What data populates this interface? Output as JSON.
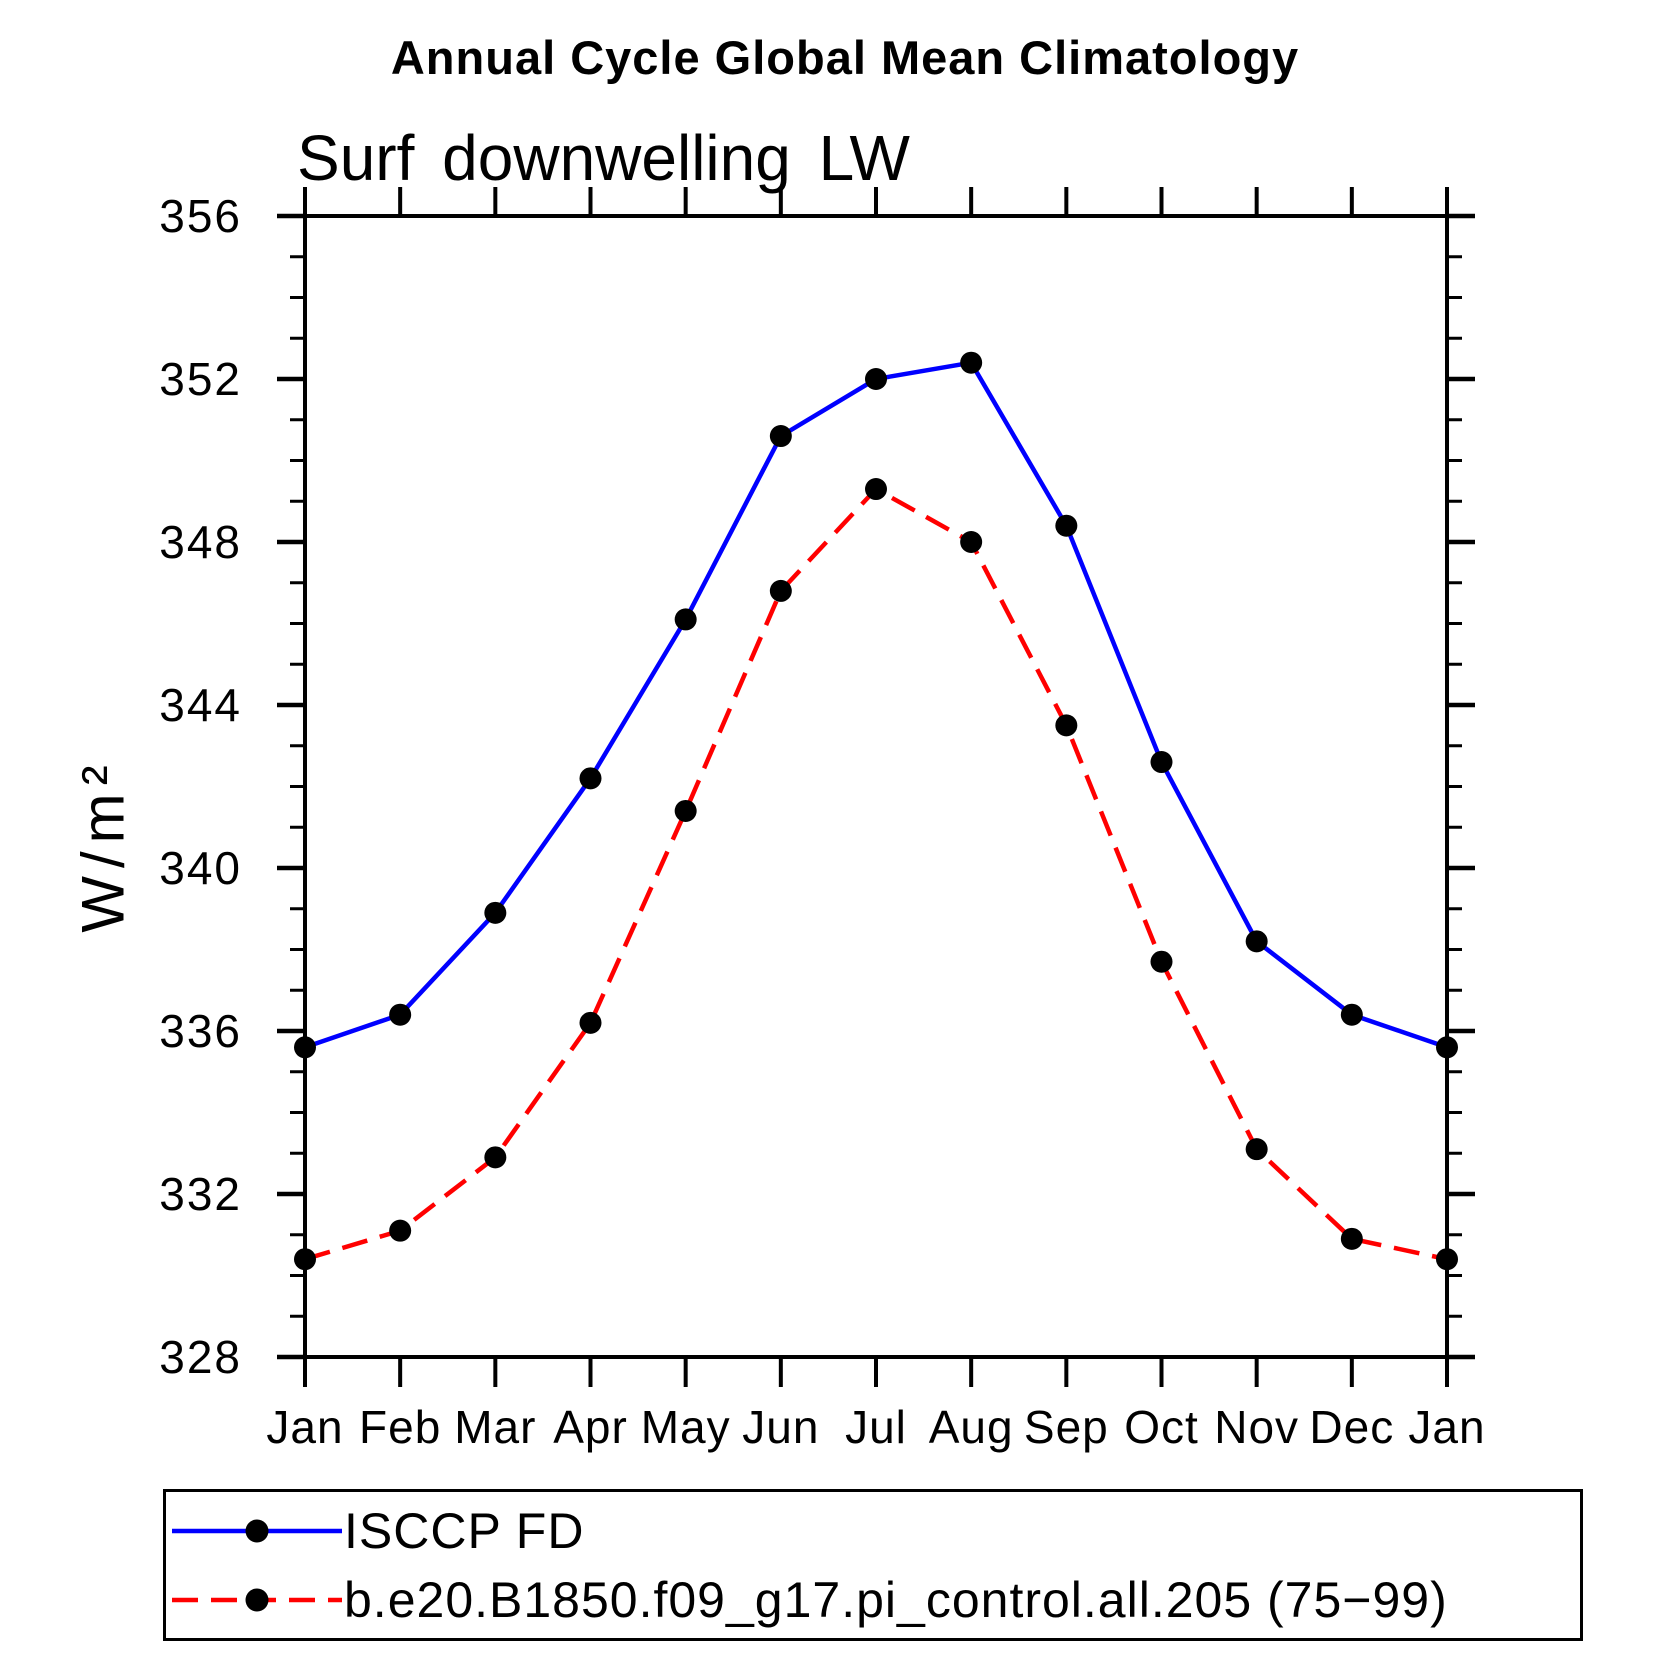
{
  "chart_data": {
    "type": "line",
    "title": "Annual Cycle Global Mean Climatology",
    "subtitle": "Surf downwelling LW",
    "ylabel": "W/m²",
    "xlabel": "",
    "categories": [
      "Jan",
      "Feb",
      "Mar",
      "Apr",
      "May",
      "Jun",
      "Jul",
      "Aug",
      "Sep",
      "Oct",
      "Nov",
      "Dec",
      "Jan"
    ],
    "series": [
      {
        "name": "ISCCP FD",
        "color": "#0000FF",
        "line_style": "solid",
        "marker": "circle",
        "marker_color": "#000000",
        "values": [
          335.6,
          336.4,
          338.9,
          342.2,
          346.1,
          350.6,
          352.0,
          352.4,
          348.4,
          342.6,
          338.2,
          336.4,
          335.6
        ]
      },
      {
        "name": "b.e20.B1850.f09_g17.pi_control.all.205 (75−99)",
        "color": "#FF0000",
        "line_style": "dashed",
        "marker": "circle",
        "marker_color": "#000000",
        "values": [
          330.4,
          331.1,
          332.9,
          336.2,
          341.4,
          346.8,
          349.3,
          348.0,
          343.5,
          337.7,
          333.1,
          330.9,
          330.4
        ]
      }
    ],
    "ylim": [
      328,
      356
    ],
    "y_major_step": 4,
    "y_minor_step": 1,
    "grid": false,
    "legend_position": "bottom-left",
    "background": "#FFFFFF",
    "axis_color": "#000000"
  }
}
